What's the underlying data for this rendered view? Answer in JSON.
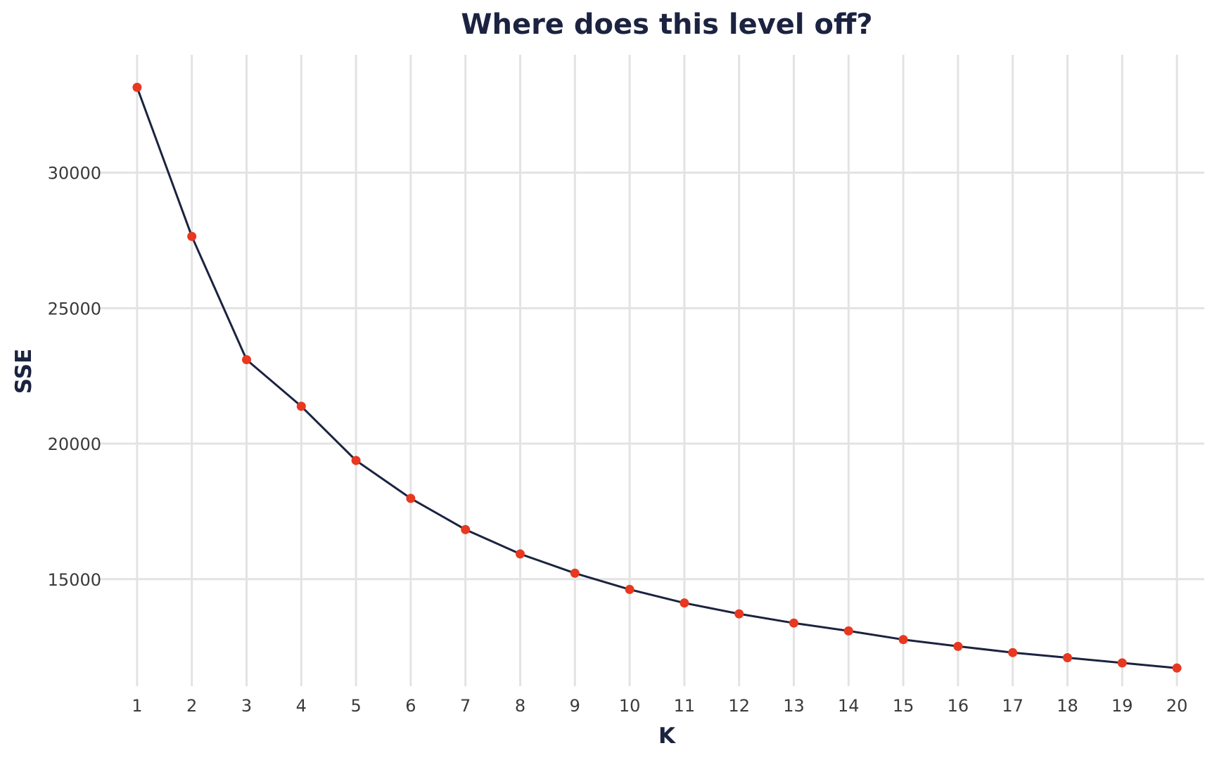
{
  "chart_data": {
    "type": "line",
    "title": "Where does this level off?",
    "xlabel": "K",
    "ylabel": "SSE",
    "x": [
      1,
      2,
      3,
      4,
      5,
      6,
      7,
      8,
      9,
      10,
      11,
      12,
      13,
      14,
      15,
      16,
      17,
      18,
      19,
      20
    ],
    "series": [
      {
        "values": [
          33150,
          27650,
          23100,
          21380,
          19380,
          17980,
          16830,
          15930,
          15220,
          14620,
          14120,
          13720,
          13380,
          13090,
          12770,
          12520,
          12290,
          12100,
          11910,
          11720
        ]
      }
    ],
    "x_ticks": [
      "1",
      "2",
      "3",
      "4",
      "5",
      "6",
      "7",
      "8",
      "9",
      "10",
      "11",
      "12",
      "13",
      "14",
      "15",
      "16",
      "17",
      "18",
      "19",
      "20"
    ],
    "y_ticks": [
      "15000",
      "20000",
      "25000",
      "30000"
    ],
    "y_tick_values": [
      15000,
      20000,
      25000,
      30000
    ],
    "xlim": [
      0.5,
      20.5
    ],
    "ylim": [
      11050,
      34350
    ],
    "grid": true,
    "legend": false,
    "colors": {
      "line": "#1b2340",
      "point": "#e8381f",
      "grid": "#e3e3e3",
      "title": "#1b2340",
      "tick_text": "#3a3a3a"
    }
  }
}
